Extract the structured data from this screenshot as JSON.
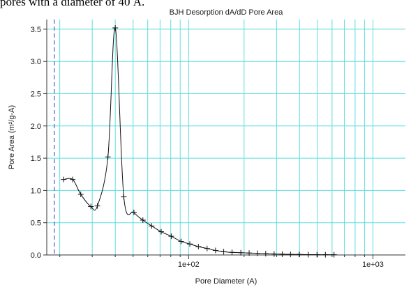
{
  "page": {
    "caption_fragment": "pores with a diameter of 40 Å."
  },
  "chart_data": {
    "type": "line",
    "title": "BJH Desorption dA/dD Pore Area",
    "xlabel": "Pore Diameter (A)",
    "ylabel": "Pore Area (m²/g-A)",
    "x_scale": "log",
    "xlim": [
      17,
      1500
    ],
    "ylim": [
      0,
      3.65
    ],
    "grid": true,
    "y_ticks": [
      0.0,
      0.5,
      1.0,
      1.5,
      2.0,
      2.5,
      3.0,
      3.5
    ],
    "y_tick_labels": [
      "0.0",
      "0.5",
      "1.0",
      "1.5",
      "2.0",
      "2.5",
      "3.0",
      "3.5"
    ],
    "x_tick_labels": [
      {
        "value": 100,
        "label": "1e+02"
      },
      {
        "value": 1000,
        "label": "1e+03"
      }
    ],
    "x_grid_values": [
      20,
      30,
      40,
      50,
      60,
      70,
      80,
      90,
      100,
      200,
      300,
      400,
      500,
      600,
      700,
      800,
      900,
      1000
    ],
    "reference_line_x": 18.7,
    "series": [
      {
        "name": "",
        "color": "#111111",
        "x": [
          21.0,
          23.5,
          26.0,
          29.5,
          32.0,
          36.5,
          40.0,
          44.5,
          50.5,
          56.5,
          63.0,
          71.0,
          80.5,
          91.0,
          101.5,
          113.0,
          126.0,
          140.0,
          155.0,
          172.0,
          192.0,
          213.0,
          236.0,
          262.0,
          291.0,
          322.0,
          357.0,
          398.0,
          446.0,
          497.0,
          552.0,
          615.0
        ],
        "y": [
          1.17,
          1.17,
          0.94,
          0.75,
          0.76,
          1.52,
          3.52,
          0.9,
          0.66,
          0.54,
          0.45,
          0.36,
          0.29,
          0.21,
          0.17,
          0.13,
          0.1,
          0.07,
          0.05,
          0.04,
          0.035,
          0.03,
          0.025,
          0.02,
          0.015,
          0.012,
          0.01,
          0.008,
          0.006,
          0.005,
          0.004,
          0.004
        ]
      }
    ]
  }
}
